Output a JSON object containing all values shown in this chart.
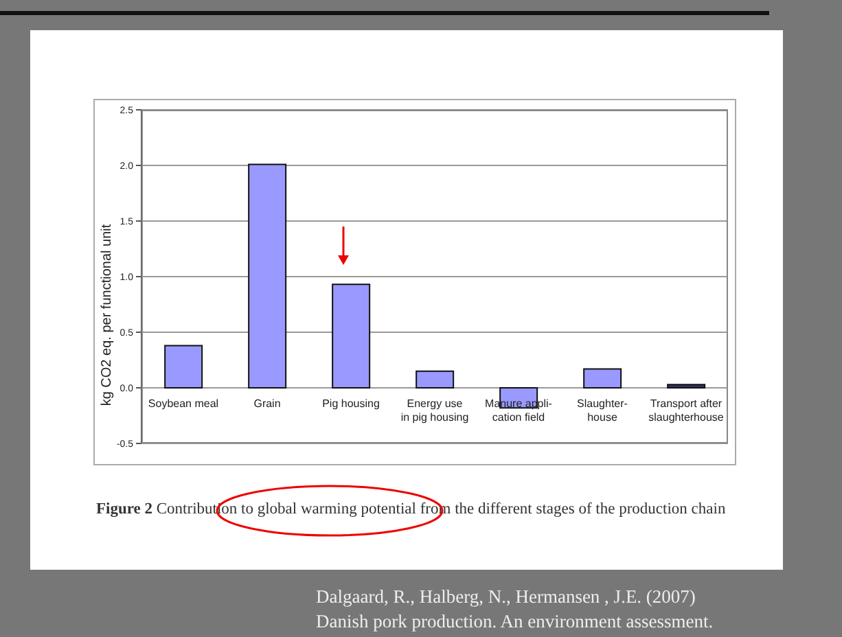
{
  "chart_data": {
    "type": "bar",
    "ylabel": "kg CO2 eq. per functional unit",
    "categories": [
      "Soybean meal",
      "Grain",
      "Pig housing",
      "Energy use\nin pig housing",
      "Manure appli-\ncation field",
      "Slaughter-\nhouse",
      "Transport after\nslaughterhouse"
    ],
    "values": [
      0.38,
      2.01,
      0.93,
      0.15,
      -0.18,
      0.17,
      0.03
    ],
    "colors": [
      "#9999ff",
      "#9999ff",
      "#9999ff",
      "#9999ff",
      "#9999ff",
      "#9999ff",
      "#333366"
    ],
    "ylim": [
      -0.5,
      2.5
    ],
    "yticks": [
      -0.5,
      {
        "value": 0,
        "label": "0.0"
      },
      0.5,
      {
        "value": 1,
        "label": "1.0"
      },
      1.5,
      {
        "value": 2,
        "label": "2.0"
      },
      2.5
    ],
    "grid": "y",
    "annotations": [
      "Figure 2",
      "Contribution to global warming potential from the different stages of the production chain",
      "Dalgaard, R., Halberg, N., Hermansen , J.E. (2007)",
      "Danish pork production. An environment assessment."
    ]
  }
}
